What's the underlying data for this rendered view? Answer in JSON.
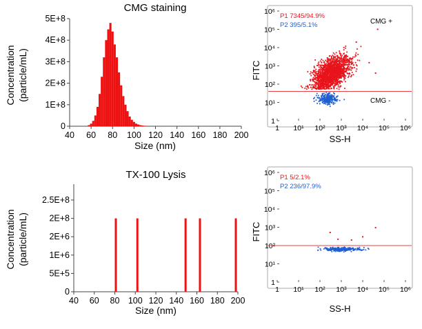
{
  "panels": {
    "cmg_hist": {
      "title": "CMG staining",
      "ylabel_1": "Concentration",
      "ylabel_2": "(particle/mL)",
      "xlabel": "Size (nm)",
      "yticks": [
        "0",
        "1E+8",
        "2E+8",
        "3E+8",
        "4E+8",
        "5E+8"
      ],
      "xticks": [
        "40",
        "60",
        "80",
        "100",
        "120",
        "140",
        "160",
        "180",
        "200"
      ]
    },
    "cmg_flow": {
      "ylabel": "FITC",
      "xlabel": "SS-H",
      "p1_label": "P1 7345/94.9%",
      "p2_label": "P2 395/5.1%",
      "gate_above_label": "CMG +",
      "gate_below_label": "CMG -"
    },
    "tx_hist": {
      "title": "TX-100 Lysis",
      "ylabel_1": "Concentration",
      "ylabel_2": "(particle/mL)",
      "xlabel": "Size (nm)",
      "yticks": [
        "0",
        "5E+5",
        "1E+6",
        "2E+6",
        "2E+8",
        "2.5E+8"
      ],
      "xticks": [
        "40",
        "60",
        "80",
        "100",
        "120",
        "140",
        "160",
        "180",
        "200"
      ]
    },
    "tx_flow": {
      "ylabel": "FITC",
      "xlabel": "SS-H",
      "p1_label": "P1 5/2.1%",
      "p2_label": "P2 236/97.9%"
    }
  },
  "colors": {
    "p1": "#e8141b",
    "p2": "#1f5fd0",
    "bar": "#ee1111",
    "gate": "#e84040"
  },
  "chart_data": [
    {
      "type": "bar",
      "title": "CMG staining",
      "xlabel": "Size (nm)",
      "ylabel": "Concentration (particle/mL)",
      "xlim": [
        40,
        200
      ],
      "ylim": [
        0,
        500000000
      ],
      "x": [
        58,
        60,
        62,
        64,
        66,
        68,
        70,
        72,
        74,
        76,
        78,
        80,
        82,
        84,
        86,
        88,
        90,
        92,
        94,
        96,
        98,
        100,
        102,
        104,
        106,
        108,
        110
      ],
      "values": [
        5000000,
        12000000,
        25000000,
        50000000,
        90000000,
        150000000,
        230000000,
        320000000,
        400000000,
        450000000,
        480000000,
        440000000,
        380000000,
        320000000,
        250000000,
        190000000,
        140000000,
        100000000,
        70000000,
        45000000,
        30000000,
        20000000,
        12000000,
        8000000,
        5000000,
        3000000,
        2000000
      ]
    },
    {
      "type": "scatter",
      "xlabel": "SS-H",
      "ylabel": "FITC",
      "xscale": "log",
      "yscale": "log",
      "xlim": [
        1,
        1000000
      ],
      "ylim": [
        1,
        1000000
      ],
      "gate_y": 40,
      "x_tick_labels": [
        "1",
        "10¹",
        "10²",
        "10³",
        "10⁴",
        "10⁵",
        "10⁶"
      ],
      "y_tick_labels": [
        "1",
        "10¹",
        "10²",
        "10³",
        "10⁴",
        "10⁵",
        "10⁶"
      ],
      "series": [
        {
          "name": "P1 7345/94.9%",
          "x_center": 350,
          "y_center": 400,
          "spread": [
            0.42,
            0.4
          ],
          "count": 1800,
          "outliers": [
            [
              50000,
              100000
            ],
            [
              5000,
              20000
            ],
            [
              20000,
              1500
            ],
            [
              3000,
              300
            ],
            [
              40000,
              400
            ]
          ]
        },
        {
          "name": "P2 395/5.1%",
          "x_center": 220,
          "y_center": 15,
          "spread": [
            0.22,
            0.15
          ],
          "count": 240
        }
      ]
    },
    {
      "type": "bar",
      "title": "TX-100 Lysis",
      "xlabel": "Size (nm)",
      "ylabel": "Concentration (particle/mL)",
      "xlim": [
        40,
        200
      ],
      "y_tick_labels": [
        "0",
        "5E+5",
        "1E+6",
        "2E+6",
        "2E+8",
        "2.5E+8"
      ],
      "x": [
        81,
        102,
        149,
        163,
        198
      ],
      "values": [
        "2E+8",
        "2E+8",
        "2E+8",
        "2E+8",
        "2E+8"
      ]
    },
    {
      "type": "scatter",
      "xlabel": "SS-H",
      "ylabel": "FITC",
      "xscale": "log",
      "yscale": "log",
      "xlim": [
        1,
        1000000
      ],
      "ylim": [
        1,
        1000000
      ],
      "gate_y": 100,
      "x_tick_labels": [
        "1",
        "10¹",
        "10²",
        "10³",
        "10⁴",
        "10⁵",
        "10⁶"
      ],
      "y_tick_labels": [
        "1",
        "10¹",
        "10²",
        "10³",
        "10⁴",
        "10⁵",
        "10⁶"
      ],
      "series": [
        {
          "name": "P1 5/2.1%",
          "points": [
            [
              300,
              520
            ],
            [
              700,
              220
            ],
            [
              3000,
              200
            ],
            [
              10000,
              300
            ],
            [
              40000,
              950
            ]
          ]
        },
        {
          "name": "P2 236/97.9%",
          "x_center": 900,
          "y_center": 62,
          "spread": [
            0.45,
            0.05
          ],
          "count": 236
        }
      ]
    }
  ]
}
